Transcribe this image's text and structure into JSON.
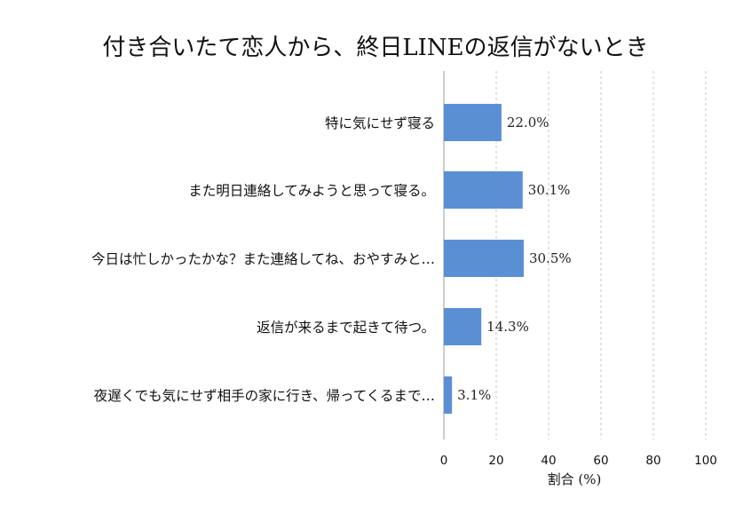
{
  "chart_data": {
    "type": "bar",
    "orientation": "horizontal",
    "title": "付き合いたて恋人から、終日LINEの返信がないとき",
    "xlabel": "割合 (%)",
    "ylabel": "",
    "xlim": [
      0,
      100
    ],
    "xticks": [
      0,
      20,
      40,
      60,
      80,
      100
    ],
    "grid": "vertical dashed",
    "bar_color": "#5b8fd4",
    "categories": [
      "特に気にせず寝る",
      "また明日連絡してみようと思って寝る。",
      "今日は忙しかったかな？また連絡してね、おやすみと…",
      "返信が来るまで起きて待つ。",
      "夜遅くでも気にせず相手の家に行き、帰ってくるまで…"
    ],
    "values": [
      22.0,
      30.1,
      30.5,
      14.3,
      3.1
    ],
    "value_labels": [
      "22.0%",
      "30.1%",
      "30.5%",
      "14.3%",
      "3.1%"
    ]
  }
}
